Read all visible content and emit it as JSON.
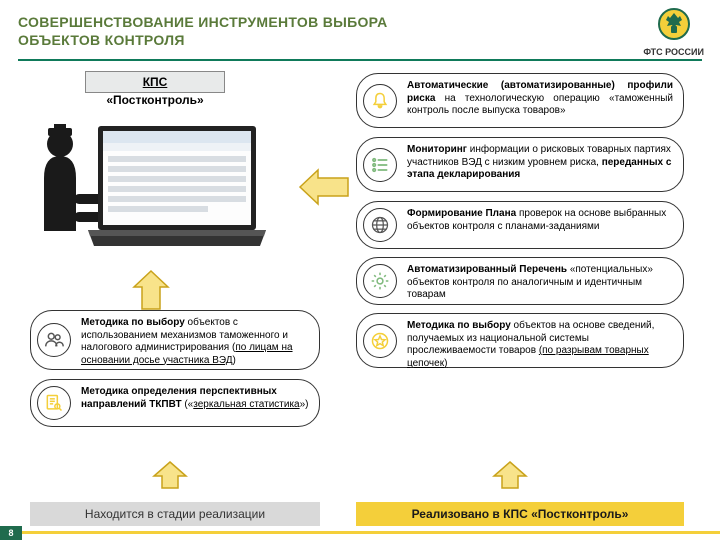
{
  "title_line1": "СОВЕРШЕНСТВОВАНИЕ ИНСТРУМЕНТОВ ВЫБОРА",
  "title_line2": "ОБЪЕКТОВ КОНТРОЛЯ",
  "logo_text": "ФТС РОССИИ",
  "kps_label": "КПС",
  "kps_sub": "«Постконтроль»",
  "right_items": [
    {
      "icon": "bell",
      "html": "<b>Автоматические (автоматизированные) профили риска</b> на технологическую операцию «таможенный контроль после выпуска товаров»",
      "color": "#f4cf3a",
      "justify": true
    },
    {
      "icon": "list",
      "html": "<b>Мониторинг</b> информации о рисковых товарных партиях участников ВЭД с низким уровнем риска, <b>переданных с этапа декларирования</b>",
      "color": "#7fb97c"
    },
    {
      "icon": "globe",
      "html": "<b>Формирование Плана</b> проверок на основе выбранных объектов контроля с планами-заданиями",
      "color": "#555"
    },
    {
      "icon": "gear",
      "html": "<b>Автоматизированный Перечень</b> «потенциальных» объектов контроля по аналогичным и идентичным товарам",
      "color": "#7fb97c"
    },
    {
      "icon": "star",
      "html": "<b>Методика по выбору</b> объектов на основе сведений, получаемых из национальной системы прослеживаемости товаров <u>(по разрывам товарных цепочек)</u>",
      "color": "#f4cf3a"
    }
  ],
  "left_items": [
    {
      "icon": "users",
      "html": "<b>Методика по выбору</b> объектов с использованием механизмов таможенного и налогового администрирования (<u>по лицам на основании досье участника ВЭД</u>)",
      "color": "#555"
    },
    {
      "icon": "doc",
      "html": "<b>Методика определения перспективных направлений ТКПВТ</b> («<u>зеркальная статистика</u>»)",
      "color": "#f4cf3a"
    }
  ],
  "footer_left": "Находится в стадии реализации",
  "footer_right": "Реализовано в КПС «Постконтроль»",
  "page_number": "8",
  "colors": {
    "accent_green": "#0f7a5a",
    "title_green": "#5a7a3a",
    "yellow": "#f4cf3a",
    "arrow_stroke": "#c9a21a",
    "grey_box": "#d9d9d9",
    "bubble_border": "#333333"
  }
}
